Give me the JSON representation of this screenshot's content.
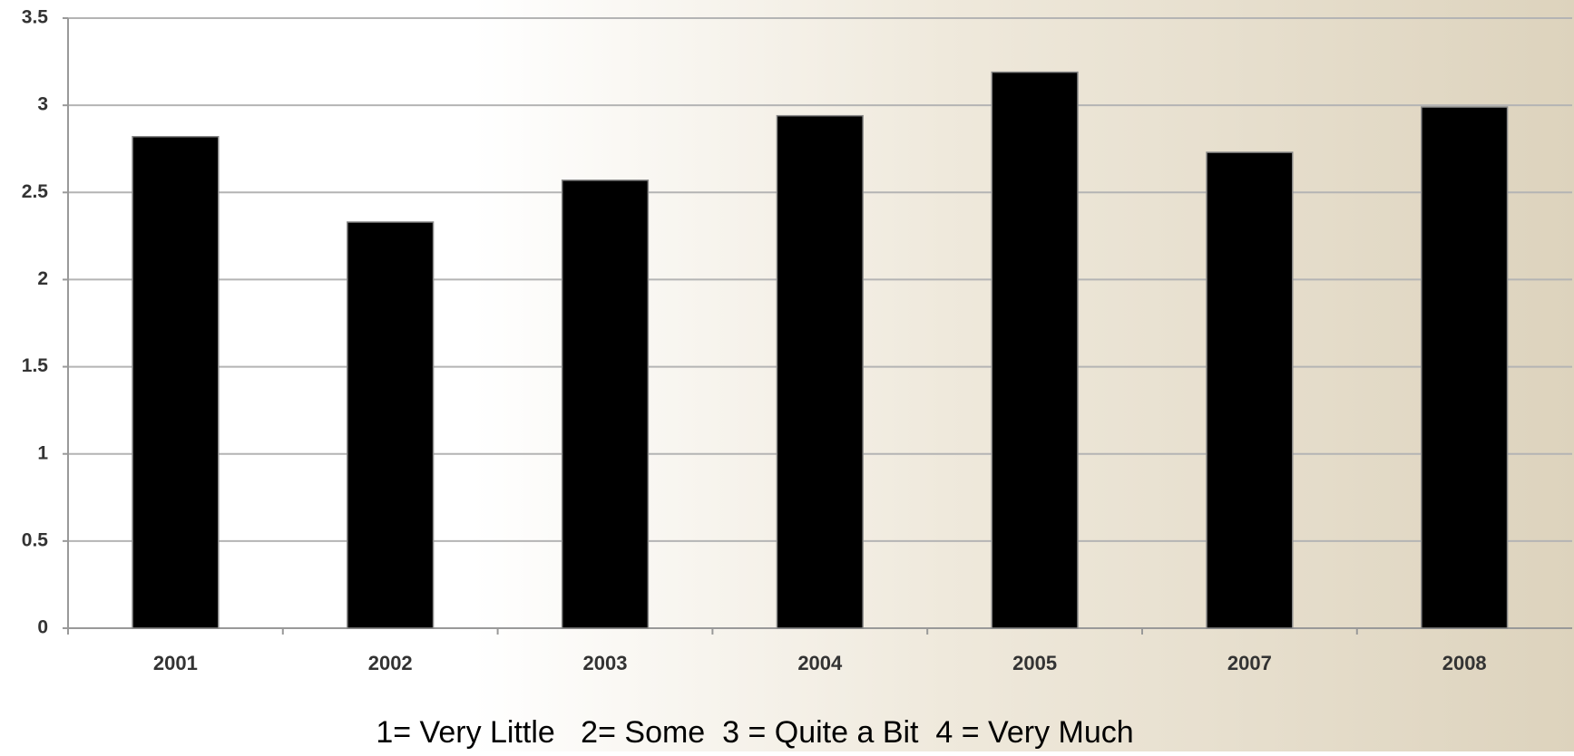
{
  "chart_data": {
    "type": "bar",
    "categories": [
      "2001",
      "2002",
      "2003",
      "2004",
      "2005",
      "2007",
      "2008"
    ],
    "values": [
      2.82,
      2.33,
      2.57,
      2.94,
      3.19,
      2.73,
      2.99
    ],
    "color": "#000000",
    "ylim": [
      0,
      3.5
    ],
    "yticks": [
      0,
      0.5,
      1,
      1.5,
      2,
      2.5,
      3,
      3.5
    ],
    "grid": true,
    "annotation": "1= Very Little   2= Some  3 = Quite a Bit  4 = Very Much"
  }
}
